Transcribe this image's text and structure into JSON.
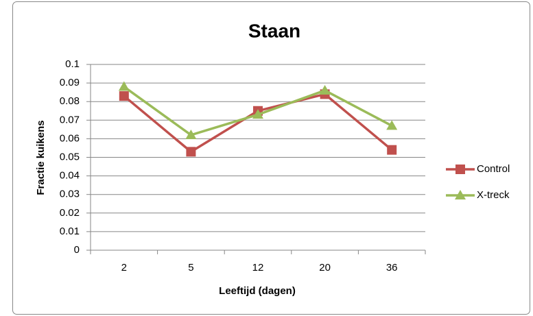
{
  "chart_data": {
    "type": "line",
    "title": "Staan",
    "xlabel": "Leeftijd (dagen)",
    "ylabel": "Fractie kuikens",
    "categories": [
      "2",
      "5",
      "12",
      "20",
      "36"
    ],
    "series": [
      {
        "name": "Control",
        "color": "#c0504d",
        "marker": "square",
        "values": [
          0.083,
          0.053,
          0.075,
          0.084,
          0.054
        ]
      },
      {
        "name": "X-treck",
        "color": "#9bbb59",
        "marker": "triangle",
        "values": [
          0.088,
          0.062,
          0.073,
          0.086,
          0.067
        ]
      }
    ],
    "ylim": [
      0,
      0.1
    ],
    "yticks": [
      0,
      0.01,
      0.02,
      0.03,
      0.04,
      0.05,
      0.06,
      0.07,
      0.08,
      0.09,
      0.1
    ],
    "grid": true,
    "legend": "right"
  }
}
